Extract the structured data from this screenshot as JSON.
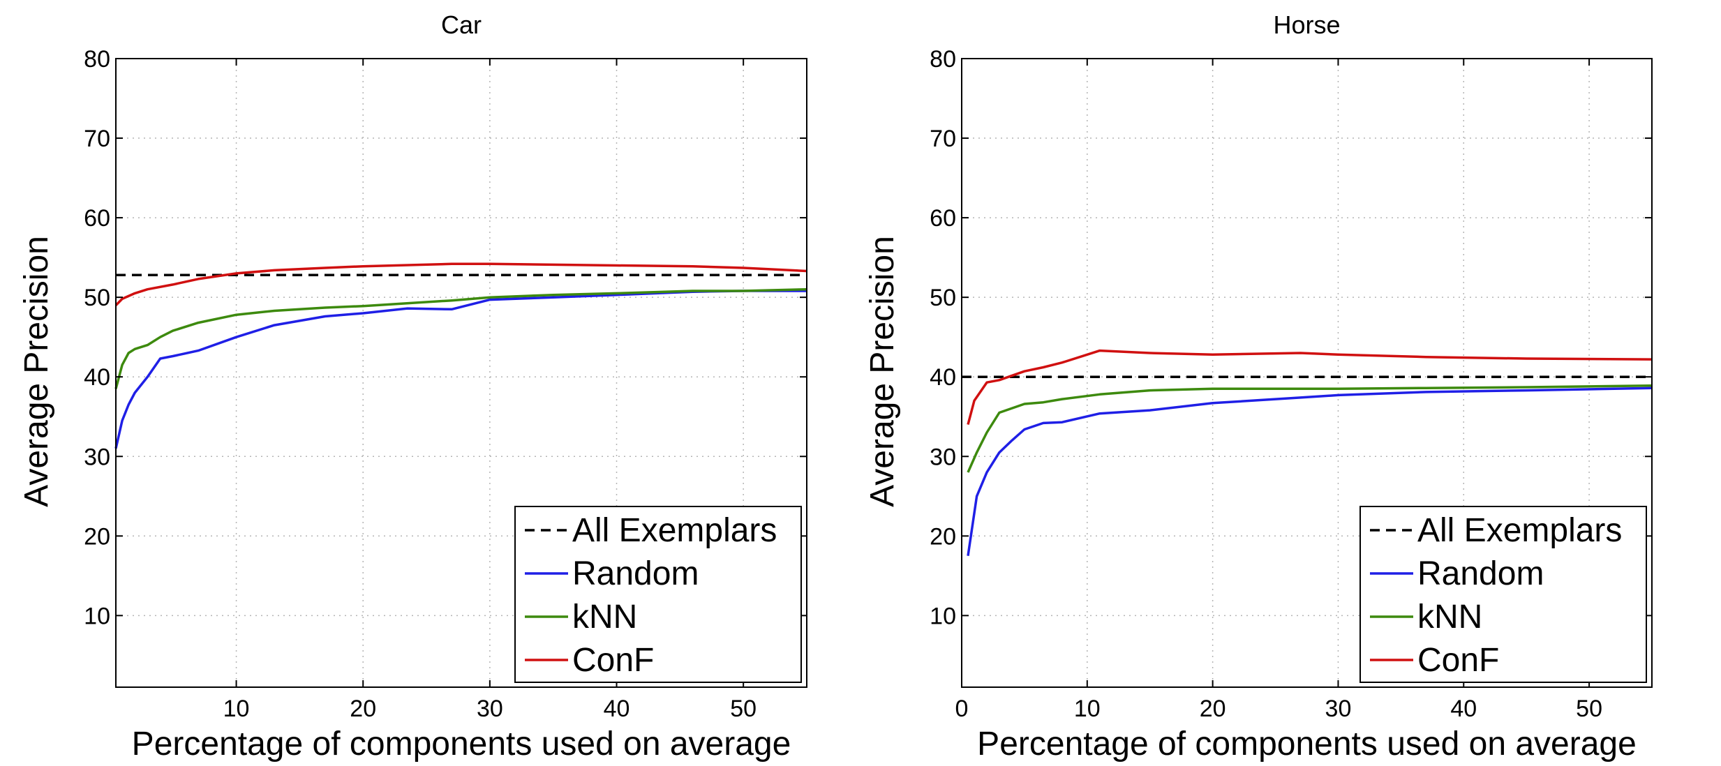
{
  "chart_data": [
    {
      "type": "line",
      "title": "Car",
      "xlabel": "Percentage of components used on average",
      "ylabel": "Average Precision",
      "xlim": [
        0.5,
        55
      ],
      "ylim": [
        1,
        80
      ],
      "xticks": [
        10,
        20,
        30,
        40,
        50
      ],
      "yticks": [
        10,
        20,
        30,
        40,
        50,
        60,
        70,
        80
      ],
      "grid": true,
      "legend_position": "bottom-right",
      "legend": [
        "All Exemplars",
        "Random",
        "kNN",
        "ConF"
      ],
      "series": [
        {
          "name": "All Exemplars",
          "style": "dashed",
          "color": "#000000",
          "x": [
            0.5,
            55
          ],
          "y": [
            52.8,
            52.8
          ]
        },
        {
          "name": "Random",
          "style": "solid",
          "color": "#1f1fe6",
          "x": [
            0.5,
            1,
            1.5,
            2,
            3,
            4,
            5,
            7,
            10,
            13,
            17,
            20,
            23.5,
            27,
            30,
            35,
            40,
            46,
            50,
            55
          ],
          "y": [
            31,
            34.5,
            36.5,
            38,
            40,
            42.3,
            42.6,
            43.3,
            45,
            46.5,
            47.6,
            48,
            48.6,
            48.5,
            49.7,
            50,
            50.3,
            50.7,
            50.8,
            50.8
          ]
        },
        {
          "name": "kNN",
          "style": "solid",
          "color": "#3d8a0e",
          "x": [
            0.5,
            1,
            1.5,
            2,
            3,
            4,
            5,
            7,
            10,
            13,
            17,
            20,
            27,
            30,
            35,
            40,
            46,
            50,
            55
          ],
          "y": [
            38.5,
            41.5,
            43,
            43.5,
            44,
            45,
            45.8,
            46.8,
            47.8,
            48.3,
            48.7,
            48.9,
            49.6,
            50,
            50.3,
            50.5,
            50.8,
            50.8,
            51
          ]
        },
        {
          "name": "ConF",
          "style": "solid",
          "color": "#d01010",
          "x": [
            0.5,
            1,
            2,
            3,
            5,
            7,
            10,
            13,
            17,
            20,
            27,
            30,
            35,
            40,
            46,
            50,
            55
          ],
          "y": [
            49,
            49.8,
            50.5,
            51,
            51.6,
            52.3,
            53,
            53.4,
            53.7,
            53.9,
            54.2,
            54.2,
            54.1,
            54,
            53.9,
            53.7,
            53.3
          ]
        }
      ]
    },
    {
      "type": "line",
      "title": "Horse",
      "xlabel": "Percentage of components used on average",
      "ylabel": "Average Precision",
      "xlim": [
        0,
        55
      ],
      "ylim": [
        1,
        80
      ],
      "xticks": [
        0,
        10,
        20,
        30,
        40,
        50
      ],
      "yticks": [
        10,
        20,
        30,
        40,
        50,
        60,
        70,
        80
      ],
      "grid": true,
      "legend_position": "bottom-right",
      "legend": [
        "All Exemplars",
        "Random",
        "kNN",
        "ConF"
      ],
      "series": [
        {
          "name": "All Exemplars",
          "style": "dashed",
          "color": "#000000",
          "x": [
            0,
            55
          ],
          "y": [
            40,
            40
          ]
        },
        {
          "name": "Random",
          "style": "solid",
          "color": "#1f1fe6",
          "x": [
            0.5,
            1.2,
            2,
            3,
            4,
            5,
            6.5,
            8,
            11,
            15,
            20,
            27,
            30,
            37,
            45,
            55
          ],
          "y": [
            17.5,
            25,
            28,
            30.5,
            32,
            33.4,
            34.2,
            34.3,
            35.4,
            35.8,
            36.7,
            37.4,
            37.7,
            38.1,
            38.3,
            38.6
          ]
        },
        {
          "name": "kNN",
          "style": "solid",
          "color": "#3d8a0e",
          "x": [
            0.5,
            1.2,
            2,
            3,
            5,
            6.5,
            8,
            11,
            15,
            20,
            27,
            30,
            37,
            45,
            55
          ],
          "y": [
            28,
            30.5,
            33,
            35.5,
            36.6,
            36.8,
            37.2,
            37.8,
            38.3,
            38.5,
            38.5,
            38.5,
            38.6,
            38.7,
            38.9
          ]
        },
        {
          "name": "ConF",
          "style": "solid",
          "color": "#d01010",
          "x": [
            0.5,
            1,
            2,
            3,
            5,
            6.5,
            8,
            11,
            15,
            20,
            27,
            30,
            37,
            45,
            55
          ],
          "y": [
            34,
            37,
            39.3,
            39.6,
            40.7,
            41.2,
            41.8,
            43.3,
            43,
            42.8,
            43,
            42.8,
            42.5,
            42.3,
            42.2
          ]
        }
      ]
    }
  ]
}
